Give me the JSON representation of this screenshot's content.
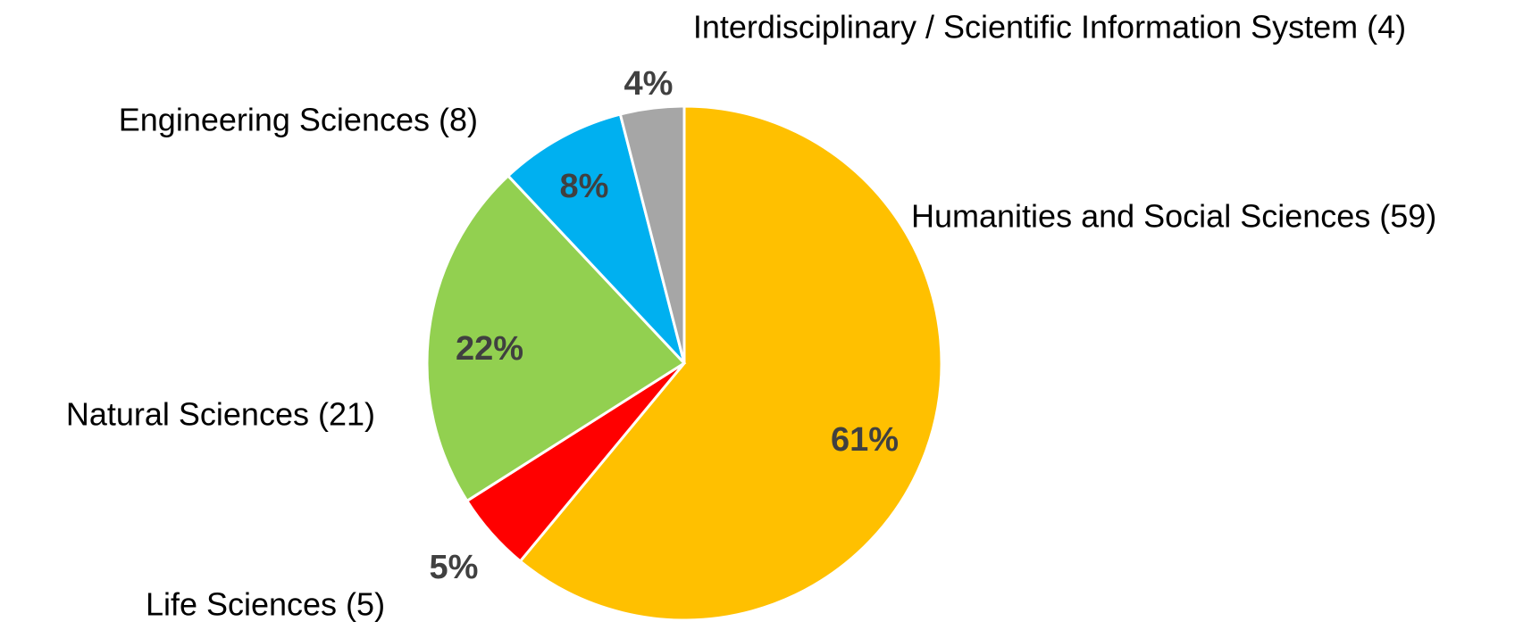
{
  "chart_data": {
    "type": "pie",
    "categories": [
      "Humanities and Social Sciences (59)",
      "Life Sciences (5)",
      "Natural Sciences (21)",
      "Engineering Sciences (8)",
      "Interdisciplinary / Scientific Information System (4)"
    ],
    "values": [
      61,
      5,
      22,
      8,
      4
    ],
    "value_labels": [
      "61%",
      "5%",
      "22%",
      "8%",
      "4%"
    ],
    "colors": [
      "#ffc000",
      "#ff0000",
      "#92d050",
      "#00b0f0",
      "#a6a6a6"
    ]
  }
}
